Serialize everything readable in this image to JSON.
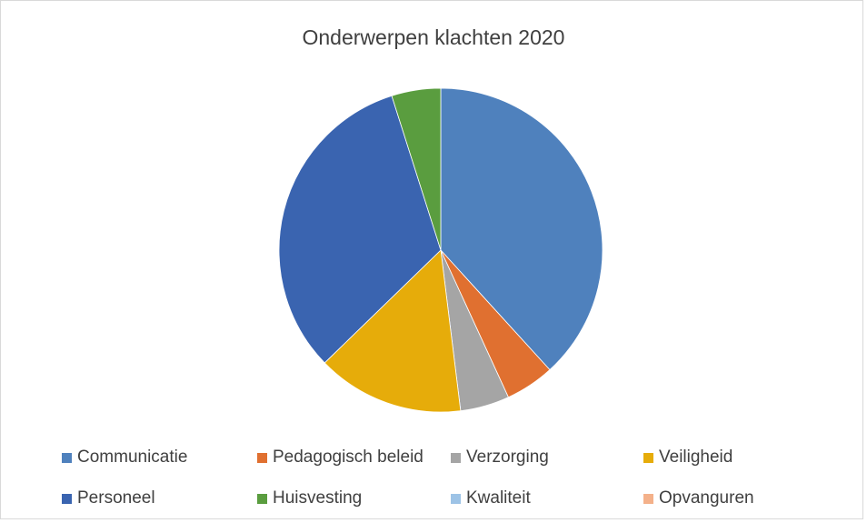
{
  "chart_data": {
    "type": "pie",
    "title": "Onderwerpen klachten 2020",
    "categories": [
      "Communicatie",
      "Pedagogisch beleid",
      "Verzorging",
      "Veiligheid",
      "Personeel",
      "Huisvesting",
      "Kwaliteit",
      "Opvanguren"
    ],
    "values": [
      39,
      5,
      5,
      15,
      33,
      5,
      0,
      0
    ],
    "colors": [
      "#4f81bd",
      "#e07030",
      "#a5a5a5",
      "#e6ac0a",
      "#3a64b0",
      "#5a9d3f",
      "#9dc3e6",
      "#f4b18a"
    ],
    "legend": "bottom",
    "start_angle_deg": 0,
    "direction": "clockwise"
  }
}
